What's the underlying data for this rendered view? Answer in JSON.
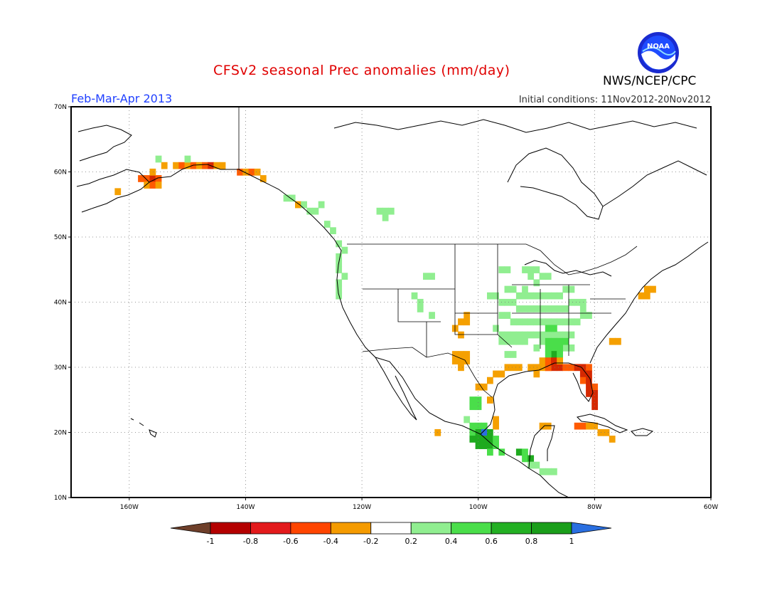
{
  "header": {
    "title": "CFSv2 seasonal Prec anomalies (mm/day)",
    "period": "Feb-Mar-Apr 2013",
    "initial_conditions": "Initial conditions: 11Nov2012-20Nov2012",
    "agency": "NWS/NCEP/CPC",
    "logo_text": "NOAA"
  },
  "map": {
    "lon_range": [
      -170,
      -60
    ],
    "lat_range": [
      10,
      70
    ],
    "lon_ticks": [
      {
        "value": -160,
        "label": "160W"
      },
      {
        "value": -140,
        "label": "140W"
      },
      {
        "value": -120,
        "label": "120W"
      },
      {
        "value": -100,
        "label": "100W"
      },
      {
        "value": -80,
        "label": "80W"
      },
      {
        "value": -60,
        "label": "60W"
      }
    ],
    "lat_ticks": [
      {
        "value": 70,
        "label": "70N"
      },
      {
        "value": 60,
        "label": "60N"
      },
      {
        "value": 50,
        "label": "50N"
      },
      {
        "value": 40,
        "label": "40N"
      },
      {
        "value": 30,
        "label": "30N"
      },
      {
        "value": 20,
        "label": "20N"
      },
      {
        "value": 10,
        "label": "10N"
      }
    ],
    "grid": "dotted"
  },
  "colorbar": {
    "labels": [
      "-1",
      "-0.8",
      "-0.6",
      "-0.4",
      "-0.2",
      "0.2",
      "0.4",
      "0.6",
      "0.8",
      "1"
    ],
    "colors": [
      "#6e3f2a",
      "#b40000",
      "#e31a1c",
      "#ff4500",
      "#f59b00",
      "#ffffff",
      "#90ee90",
      "#4ade4a",
      "#23b023",
      "#1a9e1a",
      "#2a6fe0"
    ]
  },
  "colors": {
    "dry_strong": "#d52800",
    "dry_moderate": "#ff5a00",
    "dry_weak": "#f5a000",
    "wet_weak": "#90ee90",
    "wet_moderate": "#4ade4a",
    "wet_strong": "#1faa1f",
    "wet_extreme": "#2a6fe0"
  },
  "anomalies": [
    {
      "lon": -158,
      "lat": 59,
      "v": -0.6
    },
    {
      "lon": -157,
      "lat": 59,
      "v": -0.6
    },
    {
      "lon": -156,
      "lat": 59,
      "v": -0.8
    },
    {
      "lon": -155,
      "lat": 59,
      "v": -0.6
    },
    {
      "lon": -157,
      "lat": 58,
      "v": -0.4
    },
    {
      "lon": -156,
      "lat": 58,
      "v": -0.6
    },
    {
      "lon": -155,
      "lat": 58,
      "v": -0.4
    },
    {
      "lon": -156,
      "lat": 60,
      "v": -0.4
    },
    {
      "lon": -154,
      "lat": 61,
      "v": -0.4
    },
    {
      "lon": -152,
      "lat": 61,
      "v": -0.4
    },
    {
      "lon": -151,
      "lat": 61,
      "v": -0.6
    },
    {
      "lon": -150,
      "lat": 61,
      "v": -0.4
    },
    {
      "lon": -149,
      "lat": 61,
      "v": -0.6
    },
    {
      "lon": -148,
      "lat": 61,
      "v": -0.4
    },
    {
      "lon": -147,
      "lat": 61,
      "v": -0.6
    },
    {
      "lon": -146,
      "lat": 61,
      "v": -0.8
    },
    {
      "lon": -145,
      "lat": 61,
      "v": -0.4
    },
    {
      "lon": -144,
      "lat": 61,
      "v": -0.4
    },
    {
      "lon": -162,
      "lat": 57,
      "v": -0.4
    },
    {
      "lon": -141,
      "lat": 60,
      "v": -0.6
    },
    {
      "lon": -140,
      "lat": 60,
      "v": -0.4
    },
    {
      "lon": -139,
      "lat": 60,
      "v": -0.6
    },
    {
      "lon": -138,
      "lat": 60,
      "v": -0.4
    },
    {
      "lon": -137,
      "lat": 59,
      "v": -0.4
    },
    {
      "lon": -155,
      "lat": 62,
      "v": 0.2
    },
    {
      "lon": -150,
      "lat": 62,
      "v": 0.2
    },
    {
      "lon": -133,
      "lat": 56,
      "v": 0.2
    },
    {
      "lon": -132,
      "lat": 56,
      "v": 0.2
    },
    {
      "lon": -131,
      "lat": 55,
      "v": -0.4
    },
    {
      "lon": -130,
      "lat": 55,
      "v": 0.2
    },
    {
      "lon": -129,
      "lat": 54,
      "v": 0.2
    },
    {
      "lon": -128,
      "lat": 54,
      "v": 0.2
    },
    {
      "lon": -127,
      "lat": 55,
      "v": 0.2
    },
    {
      "lon": -126,
      "lat": 52,
      "v": 0.2
    },
    {
      "lon": -125,
      "lat": 51,
      "v": 0.2
    },
    {
      "lon": -124,
      "lat": 49,
      "v": 0.2
    },
    {
      "lon": -123,
      "lat": 48,
      "v": 0.2
    },
    {
      "lon": -124,
      "lat": 47,
      "v": 0.2
    },
    {
      "lon": -124,
      "lat": 46,
      "v": 0.2
    },
    {
      "lon": -124,
      "lat": 45,
      "v": 0.2
    },
    {
      "lon": -123,
      "lat": 44,
      "v": 0.2
    },
    {
      "lon": -124,
      "lat": 43,
      "v": 0.2
    },
    {
      "lon": -124,
      "lat": 42,
      "v": 0.2
    },
    {
      "lon": -124,
      "lat": 41,
      "v": 0.2
    },
    {
      "lon": -117,
      "lat": 54,
      "v": 0.2
    },
    {
      "lon": -116,
      "lat": 54,
      "v": 0.2
    },
    {
      "lon": -115,
      "lat": 54,
      "v": 0.2
    },
    {
      "lon": -116,
      "lat": 53,
      "v": 0.2
    },
    {
      "lon": -109,
      "lat": 44,
      "v": 0.2
    },
    {
      "lon": -108,
      "lat": 44,
      "v": 0.2
    },
    {
      "lon": -111,
      "lat": 41,
      "v": 0.2
    },
    {
      "lon": -110,
      "lat": 40,
      "v": 0.2
    },
    {
      "lon": -110,
      "lat": 39,
      "v": 0.2
    },
    {
      "lon": -108,
      "lat": 38,
      "v": 0.2
    },
    {
      "lon": -102,
      "lat": 38,
      "v": -0.4
    },
    {
      "lon": -103,
      "lat": 37,
      "v": -0.4
    },
    {
      "lon": -102,
      "lat": 37,
      "v": -0.4
    },
    {
      "lon": -104,
      "lat": 36,
      "v": -0.4
    },
    {
      "lon": -103,
      "lat": 35,
      "v": -0.4
    },
    {
      "lon": -104,
      "lat": 32,
      "v": -0.4
    },
    {
      "lon": -103,
      "lat": 32,
      "v": -0.4
    },
    {
      "lon": -102,
      "lat": 32,
      "v": -0.4
    },
    {
      "lon": -104,
      "lat": 31,
      "v": -0.4
    },
    {
      "lon": -103,
      "lat": 31,
      "v": -0.4
    },
    {
      "lon": -102,
      "lat": 31,
      "v": -0.4
    },
    {
      "lon": -103,
      "lat": 30,
      "v": -0.4
    },
    {
      "lon": -96,
      "lat": 45,
      "v": 0.2
    },
    {
      "lon": -95,
      "lat": 45,
      "v": 0.2
    },
    {
      "lon": -92,
      "lat": 45,
      "v": 0.2
    },
    {
      "lon": -91,
      "lat": 45,
      "v": 0.2
    },
    {
      "lon": -90,
      "lat": 45,
      "v": 0.2
    },
    {
      "lon": -89,
      "lat": 44,
      "v": 0.2
    },
    {
      "lon": -88,
      "lat": 44,
      "v": 0.2
    },
    {
      "lon": -91,
      "lat": 44,
      "v": 0.2
    },
    {
      "lon": -90,
      "lat": 43,
      "v": 0.2
    },
    {
      "lon": -92,
      "lat": 42,
      "v": 0.2
    },
    {
      "lon": -95,
      "lat": 42,
      "v": 0.2
    },
    {
      "lon": -94,
      "lat": 42,
      "v": 0.2
    },
    {
      "lon": -93,
      "lat": 41,
      "v": 0.2
    },
    {
      "lon": -92,
      "lat": 41,
      "v": 0.2
    },
    {
      "lon": -91,
      "lat": 41,
      "v": 0.2
    },
    {
      "lon": -90,
      "lat": 41,
      "v": 0.2
    },
    {
      "lon": -89,
      "lat": 41,
      "v": 0.2
    },
    {
      "lon": -88,
      "lat": 41,
      "v": 0.2
    },
    {
      "lon": -87,
      "lat": 41,
      "v": 0.2
    },
    {
      "lon": -86,
      "lat": 41,
      "v": 0.2
    },
    {
      "lon": -85,
      "lat": 42,
      "v": 0.2
    },
    {
      "lon": -84,
      "lat": 42,
      "v": 0.2
    },
    {
      "lon": -98,
      "lat": 41,
      "v": 0.2
    },
    {
      "lon": -97,
      "lat": 41,
      "v": 0.2
    },
    {
      "lon": -96,
      "lat": 40,
      "v": 0.2
    },
    {
      "lon": -95,
      "lat": 40,
      "v": 0.2
    },
    {
      "lon": -94,
      "lat": 40,
      "v": 0.2
    },
    {
      "lon": -93,
      "lat": 39,
      "v": 0.2
    },
    {
      "lon": -92,
      "lat": 39,
      "v": 0.2
    },
    {
      "lon": -91,
      "lat": 39,
      "v": 0.2
    },
    {
      "lon": -90,
      "lat": 39,
      "v": 0.2
    },
    {
      "lon": -89,
      "lat": 39,
      "v": 0.2
    },
    {
      "lon": -88,
      "lat": 39,
      "v": 0.2
    },
    {
      "lon": -87,
      "lat": 39,
      "v": 0.2
    },
    {
      "lon": -86,
      "lat": 39,
      "v": 0.2
    },
    {
      "lon": -85,
      "lat": 39,
      "v": 0.2
    },
    {
      "lon": -96,
      "lat": 38,
      "v": 0.2
    },
    {
      "lon": -95,
      "lat": 38,
      "v": 0.2
    },
    {
      "lon": -94,
      "lat": 37,
      "v": 0.2
    },
    {
      "lon": -93,
      "lat": 37,
      "v": 0.2
    },
    {
      "lon": -92,
      "lat": 37,
      "v": 0.2
    },
    {
      "lon": -91,
      "lat": 37,
      "v": 0.2
    },
    {
      "lon": -90,
      "lat": 37,
      "v": 0.2
    },
    {
      "lon": -89,
      "lat": 37,
      "v": 0.2
    },
    {
      "lon": -88,
      "lat": 37,
      "v": 0.2
    },
    {
      "lon": -87,
      "lat": 37,
      "v": 0.2
    },
    {
      "lon": -86,
      "lat": 37,
      "v": 0.2
    },
    {
      "lon": -85,
      "lat": 37,
      "v": 0.2
    },
    {
      "lon": -84,
      "lat": 37,
      "v": 0.2
    },
    {
      "lon": -83,
      "lat": 37,
      "v": 0.2
    },
    {
      "lon": -97,
      "lat": 36,
      "v": 0.2
    },
    {
      "lon": -96,
      "lat": 35,
      "v": 0.2
    },
    {
      "lon": -95,
      "lat": 35,
      "v": 0.2
    },
    {
      "lon": -94,
      "lat": 35,
      "v": 0.2
    },
    {
      "lon": -93,
      "lat": 35,
      "v": 0.2
    },
    {
      "lon": -92,
      "lat": 35,
      "v": 0.2
    },
    {
      "lon": -91,
      "lat": 35,
      "v": 0.2
    },
    {
      "lon": -90,
      "lat": 35,
      "v": 0.2
    },
    {
      "lon": -89,
      "lat": 35,
      "v": 0.2
    },
    {
      "lon": -88,
      "lat": 35,
      "v": 0.2
    },
    {
      "lon": -87,
      "lat": 35,
      "v": 0.2
    },
    {
      "lon": -86,
      "lat": 35,
      "v": 0.2
    },
    {
      "lon": -85,
      "lat": 35,
      "v": 0.2
    },
    {
      "lon": -84,
      "lat": 35,
      "v": 0.2
    },
    {
      "lon": -96,
      "lat": 34,
      "v": 0.2
    },
    {
      "lon": -95,
      "lat": 34,
      "v": 0.2
    },
    {
      "lon": -94,
      "lat": 34,
      "v": 0.2
    },
    {
      "lon": -93,
      "lat": 34,
      "v": 0.2
    },
    {
      "lon": -92,
      "lat": 34,
      "v": 0.2
    },
    {
      "lon": -89,
      "lat": 34,
      "v": 0.2
    },
    {
      "lon": -90,
      "lat": 33,
      "v": 0.2
    },
    {
      "lon": -85,
      "lat": 33,
      "v": 0.2
    },
    {
      "lon": -84,
      "lat": 33,
      "v": 0.2
    },
    {
      "lon": -95,
      "lat": 32,
      "v": 0.2
    },
    {
      "lon": -94,
      "lat": 32,
      "v": 0.2
    },
    {
      "lon": -89,
      "lat": 31,
      "v": 0.2
    },
    {
      "lon": -86,
      "lat": 31,
      "v": 0.2
    },
    {
      "lon": -88,
      "lat": 36,
      "v": 0.4
    },
    {
      "lon": -87,
      "lat": 36,
      "v": 0.4
    },
    {
      "lon": -88,
      "lat": 34,
      "v": 0.4
    },
    {
      "lon": -87,
      "lat": 34,
      "v": 0.4
    },
    {
      "lon": -86,
      "lat": 34,
      "v": 0.4
    },
    {
      "lon": -85,
      "lat": 34,
      "v": 0.4
    },
    {
      "lon": -88,
      "lat": 33,
      "v": 0.4
    },
    {
      "lon": -87,
      "lat": 33,
      "v": 0.4
    },
    {
      "lon": -86,
      "lat": 33,
      "v": 0.4
    },
    {
      "lon": -87,
      "lat": 32,
      "v": 0.6
    },
    {
      "lon": -86,
      "lat": 32,
      "v": 0.4
    },
    {
      "lon": -88,
      "lat": 32,
      "v": 0.4
    },
    {
      "lon": -84,
      "lat": 40,
      "v": 0.2
    },
    {
      "lon": -83,
      "lat": 40,
      "v": 0.2
    },
    {
      "lon": -82,
      "lat": 40,
      "v": 0.2
    },
    {
      "lon": -82,
      "lat": 39,
      "v": 0.2
    },
    {
      "lon": -81,
      "lat": 38,
      "v": 0.2
    },
    {
      "lon": -82,
      "lat": 38,
      "v": 0.2
    },
    {
      "lon": -88,
      "lat": 30,
      "v": -0.6
    },
    {
      "lon": -87,
      "lat": 30,
      "v": -0.8
    },
    {
      "lon": -86,
      "lat": 30,
      "v": -0.8
    },
    {
      "lon": -85,
      "lat": 30,
      "v": -0.6
    },
    {
      "lon": -84,
      "lat": 30,
      "v": -0.6
    },
    {
      "lon": -83,
      "lat": 30,
      "v": -0.8
    },
    {
      "lon": -82,
      "lat": 30,
      "v": -0.8
    },
    {
      "lon": -81,
      "lat": 30,
      "v": -0.6
    },
    {
      "lon": -89,
      "lat": 31,
      "v": -0.4
    },
    {
      "lon": -88,
      "lat": 31,
      "v": -0.6
    },
    {
      "lon": -87,
      "lat": 31,
      "v": -0.8
    },
    {
      "lon": -86,
      "lat": 31,
      "v": -0.4
    },
    {
      "lon": -82,
      "lat": 29,
      "v": -0.8
    },
    {
      "lon": -81,
      "lat": 29,
      "v": -0.8
    },
    {
      "lon": -82,
      "lat": 28,
      "v": -0.6
    },
    {
      "lon": -81,
      "lat": 28,
      "v": -0.8
    },
    {
      "lon": -81,
      "lat": 27,
      "v": -0.8
    },
    {
      "lon": -80,
      "lat": 27,
      "v": -0.6
    },
    {
      "lon": -81,
      "lat": 26,
      "v": -0.8
    },
    {
      "lon": -80,
      "lat": 26,
      "v": -0.8
    },
    {
      "lon": -80,
      "lat": 25,
      "v": -0.8
    },
    {
      "lon": -80,
      "lat": 24,
      "v": -0.8
    },
    {
      "lon": -91,
      "lat": 30,
      "v": -0.4
    },
    {
      "lon": -90,
      "lat": 30,
      "v": -0.4
    },
    {
      "lon": -89,
      "lat": 30,
      "v": -0.4
    },
    {
      "lon": -93,
      "lat": 30,
      "v": -0.4
    },
    {
      "lon": -94,
      "lat": 30,
      "v": -0.4
    },
    {
      "lon": -95,
      "lat": 30,
      "v": -0.4
    },
    {
      "lon": -96,
      "lat": 29,
      "v": -0.4
    },
    {
      "lon": -97,
      "lat": 29,
      "v": -0.4
    },
    {
      "lon": -98,
      "lat": 28,
      "v": -0.4
    },
    {
      "lon": -99,
      "lat": 27,
      "v": -0.4
    },
    {
      "lon": -100,
      "lat": 27,
      "v": -0.4
    },
    {
      "lon": -90,
      "lat": 29,
      "v": -0.4
    },
    {
      "lon": -83,
      "lat": 21,
      "v": -0.6
    },
    {
      "lon": -82,
      "lat": 21,
      "v": -0.6
    },
    {
      "lon": -81,
      "lat": 21,
      "v": -0.4
    },
    {
      "lon": -80,
      "lat": 21,
      "v": -0.4
    },
    {
      "lon": -79,
      "lat": 20,
      "v": -0.4
    },
    {
      "lon": -78,
      "lat": 20,
      "v": -0.4
    },
    {
      "lon": -77,
      "lat": 19,
      "v": -0.4
    },
    {
      "lon": -89,
      "lat": 21,
      "v": -0.4
    },
    {
      "lon": -88,
      "lat": 21,
      "v": -0.4
    },
    {
      "lon": -70,
      "lat": 42,
      "v": -0.4
    },
    {
      "lon": -71,
      "lat": 42,
      "v": -0.4
    },
    {
      "lon": -71,
      "lat": 41,
      "v": -0.4
    },
    {
      "lon": -72,
      "lat": 41,
      "v": -0.4
    },
    {
      "lon": -101,
      "lat": 25,
      "v": 0.4
    },
    {
      "lon": -100,
      "lat": 25,
      "v": 0.4
    },
    {
      "lon": -101,
      "lat": 24,
      "v": 0.4
    },
    {
      "lon": -100,
      "lat": 24,
      "v": 0.4
    },
    {
      "lon": -102,
      "lat": 22,
      "v": 0.2
    },
    {
      "lon": -101,
      "lat": 21,
      "v": 0.4
    },
    {
      "lon": -100,
      "lat": 21,
      "v": 0.4
    },
    {
      "lon": -99,
      "lat": 21,
      "v": 0.4
    },
    {
      "lon": -101,
      "lat": 20,
      "v": 0.4
    },
    {
      "lon": -100,
      "lat": 20,
      "v": 0.8
    },
    {
      "lon": -99,
      "lat": 20,
      "v": 1.0
    },
    {
      "lon": -98,
      "lat": 20,
      "v": 0.6
    },
    {
      "lon": -101,
      "lat": 19,
      "v": 0.6
    },
    {
      "lon": -100,
      "lat": 19,
      "v": 0.6
    },
    {
      "lon": -99,
      "lat": 19,
      "v": 0.8
    },
    {
      "lon": -98,
      "lat": 19,
      "v": 0.6
    },
    {
      "lon": -97,
      "lat": 19,
      "v": 0.4
    },
    {
      "lon": -100,
      "lat": 18,
      "v": 0.6
    },
    {
      "lon": -99,
      "lat": 18,
      "v": 0.8
    },
    {
      "lon": -98,
      "lat": 18,
      "v": 0.6
    },
    {
      "lon": -97,
      "lat": 18,
      "v": 0.4
    },
    {
      "lon": -96,
      "lat": 17,
      "v": 0.4
    },
    {
      "lon": -98,
      "lat": 17,
      "v": 0.4
    },
    {
      "lon": -93,
      "lat": 17,
      "v": 0.6
    },
    {
      "lon": -92,
      "lat": 17,
      "v": 0.4
    },
    {
      "lon": -92,
      "lat": 16,
      "v": 0.4
    },
    {
      "lon": -91,
      "lat": 16,
      "v": 0.6
    },
    {
      "lon": -91,
      "lat": 15,
      "v": 0.2
    },
    {
      "lon": -90,
      "lat": 15,
      "v": 0.2
    },
    {
      "lon": -89,
      "lat": 14,
      "v": 0.2
    },
    {
      "lon": -88,
      "lat": 14,
      "v": 0.2
    },
    {
      "lon": -87,
      "lat": 14,
      "v": 0.2
    },
    {
      "lon": -107,
      "lat": 20,
      "v": -0.4
    },
    {
      "lon": -97,
      "lat": 21,
      "v": -0.4
    },
    {
      "lon": -97,
      "lat": 22,
      "v": -0.4
    },
    {
      "lon": -98,
      "lat": 25,
      "v": -0.4
    },
    {
      "lon": -88,
      "lat": 30,
      "v": -0.6
    },
    {
      "lon": -76,
      "lat": 34,
      "v": -0.4
    },
    {
      "lon": -77,
      "lat": 34,
      "v": -0.4
    }
  ]
}
